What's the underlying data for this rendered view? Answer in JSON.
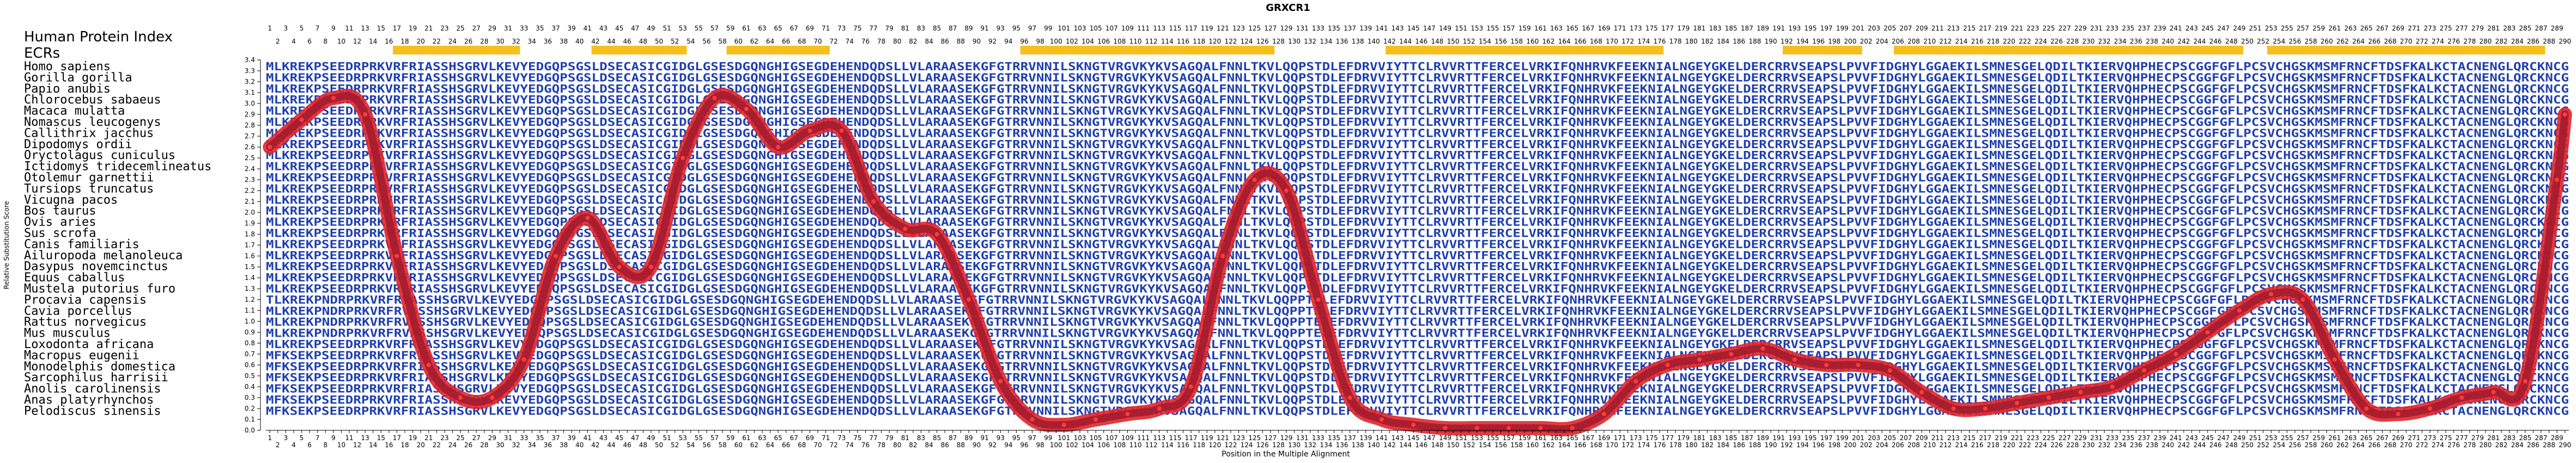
{
  "chart_data": {
    "type": "line",
    "title": "GRXCR1",
    "header_left": "Human Protein Index",
    "ecr_label": "ECRs",
    "xlabel": "Position in the Multiple Alignment",
    "ylabel": "Relative Substitution Score",
    "ylim": [
      0.0,
      3.4
    ],
    "yticks": [
      0.0,
      0.1,
      0.2,
      0.3,
      0.4,
      0.5,
      0.6,
      0.7,
      0.8,
      0.9,
      1.0,
      1.1,
      1.2,
      1.3,
      1.4,
      1.5,
      1.6,
      1.7,
      1.8,
      1.9,
      2.0,
      2.1,
      2.2,
      2.3,
      2.4,
      2.5,
      2.6,
      2.7,
      2.8,
      2.9,
      3.0,
      3.1,
      3.2,
      3.3,
      3.4
    ],
    "alignment_length": 290,
    "human_index_length": 290,
    "grid": false,
    "species": [
      "Homo sapiens",
      "Gorilla gorilla",
      "Papio anubis",
      "Chlorocebus sabaeus",
      "Macaca mulatta",
      "Nomascus leucogenys",
      "Callithrix jacchus",
      "Dipodomys ordii",
      "Oryctolagus cuniculus",
      "Ictidomys tridecemlineatus",
      "Otolemur garnettii",
      "Tursiops truncatus",
      "Vicugna pacos",
      "Bos taurus",
      "Ovis aries",
      "Sus scrofa",
      "Canis familiaris",
      "Ailuropoda melanoleuca",
      "Dasypus novemcinctus",
      "Equus caballus",
      "Mustela putorius furo",
      "Procavia capensis",
      "Cavia porcellus",
      "Rattus norvegicus",
      "Mus musculus",
      "Loxodonta africana",
      "Macropus eugenii",
      "Monodelphis domestica",
      "Sarcophilus harrisii",
      "Anolis carolinensis",
      "Anas platyrhynchos",
      "Pelodiscus sinensis"
    ],
    "sequences": [
      "MLKREKPSEEDRPRKVRFRIASSHSGRVLKEVYEDGQPSGSLDSECASICGIDGLGSESDGQNGHIGSEGDEHENDQDSLLVLARAASEKGFGTRRVNNILSKNGTVRGVKYKVSAGQALFNNLTKVLQQPSTDLEFDRVVIYTTCLRVVRTTFERCELVRKIFQNHRVKFEEKNIALNGEYGKELDERCRRVSEAPSLPVVFIDGHYLGGAEKILSMNESGELQDILTKIERVQHPHECPSCGGFGFLPCSVCHGSKMSMFRNCFTDSFKALKCTACNENGLQRCKNCG",
      "MLKREKPSEEDRPRKVRFRIASSHSGRVLKEVYEDGQPSGSLDSECASICGIDGLGSESDGQNGHIGSEGDEHENDQDSLLVLARAASEKGFGTRRVNNILSKNGTVRGVKYKVSAGQALFNNLTKVLQQPSTDLEFDRVVIYTTCLRVVRTTFERCELVRKIFQNHRVKFEEKNIALNGEYGKELDERCRRVSEAPSLPVVFIDGHYLGGAEKILSMNESGELQDILTKIERVQHPHECPSCGGFGFLPCSVCHGSKMSMFRNCFTDSFKALKCTACNENGLQRCKNCG",
      "MLKREKPSEEDRPRKVRFRIASSHSGRVLKEVYEDGQPSGSLDSECASICGIDGLGSESDGQNGHIGSEGDEHENDQDSLLVLARAASEKGFGTRRVNNILSKNGTVRGVKYKVSAGQALFNNLTKVLQQPSTDLEFDRVVIYTTCLRVVRTTFERCELVRKIFQNHRVKFEEKNIALNGEYGKELDERCRRVSEAPSLPVVFIDGHYLGGAEKILSMNESGELQDILTKIERVQHPHECPSCGGFGFLPCSVCHGSKMSMFRNCFTDSFKALKCTACNENGLQRCKNCG",
      "MLKREKPSEEDRPRKVRFRIASSHSGRVLKEVYEDGQPSGSLDSECASICGIDGLGSESDGQNGHIGSEGDEHENDQDSLLVLARAASEKGFGTRRVNNILSKNGTVRGVKYKVSAGQALFNNLTKVLQQPSTDLEFDRVVIYTTCLRVVRTTFERCELVRKIFQNHRVKFEEKNIALNGEYGKELDERCRRVSEAPSLPVVFIDGHYLGGAEKILSMNESGELQDILTKIERVQHPHECPSCGGFGFLPCSVCHGSKMSMFRNCFTDSFKALKCTACNENGLQRCKNCG",
      "MLKREKPSEEDRPRKVRFRIASSHSGRVLKEVYEDGQPSGSLDSECASICGIDGLGSESDGQNGHIGSEGDEHENDQDSLLVLARAASEKGFGTRRVNNILSKNGTVRGVKYKVSAGQALFNNLTKVLQQPSTDLEFDRVVIYTTCLRVVRTTFERCELVRKIFQNHRVKFEEKNIALNGEYGKELDERCRRVSEAPSLPVVFIDGHYLGGAEKILSMNESGELQDILTKIERVQHPHECPSCGGFGFLPCSVCHGSKMSMFRNCFTDSFKALKCTACNENGLQRCKNCG",
      "MLKREKPSEEDRPRKVRFRIASSHSGRVLKEVYEDGQPSGSLDSECASICGIDGLGSESDGQNGHIGSEGDEHENDQDSLLVLARAASEKGFGTRRVNNILSKNGTVRGVKYKVSAGQALFNNLTKVLQQPSTDLEFDRVVIYTTCLRVVRTTFERCELVRKIFQNHRVKFEEKNIALNGEYGKELDERCRRVSEAPSLPVVFIDGHYLGGAEKILSMNESGELQDILTKIERVQHPHECPSCGGFGFLPCSVCHGSKMSMFRNCFTDSFKALKCTACNENGLQRCKNCG",
      "MLKREKPSEEDRPRKVRFRIASSHSGRVLKEVYEDGQPSGSLDSECASICGIDGLGSESDGQNGHIGSEGDEHENDQDSLLVLARAASEKGFGTRRVNNILSKNGTVRGVKYKVSAGQALFNNLTKVLQQPSTDLEFDRVVIYTTCLRVVRTTFERCELVRKIFQNHRVKFEEKNIALNGEYGKELDERCRRVSEAPSLPVVFIDGHYLGGAEKILSMNESGELQDILTKIERVQHPHECPSCGGFGFLPCSVCHGSKMSMFRNCFTDSFKALKCTACNENGLQRCKNCG",
      "MLKREKPSEEDRPRKVRFRIASSHSGRVLKEVYEDGQPSGSLDSECASICGIDGLGSESDGQNGHIGSEGDEHENDQDSLLVLARAASEKGFGTRRVNNILSKNGTVRGVKYKVSAGQALFNNLTKVLQQPSTDLEFDRVVIYTTCLRVVRTTFERCELVRKIFQNHRVKFEEKNIALNGEYGKELDERCRRVSEAPSLPVVFIDGHYLGGAEKILSMNESGELQDILTKIERVQHPHECPSCGGFGFLPCSVCHGSKMSMFRNCFTDSFKALKCTACNENGLQRCKNCG",
      "MLKREKPSEEDRPRKVRFRIASSHSGRVLKEVYEDGQPSGSLDSECASICGIDGLGSESDGQNGHIGSEGDEHENDQDSLLVLARAASEKGFGTRRVNNILSKNGTVRGVKYKVSAGQALFNNLTKVLQQPSTDLEFDRVVIYTTCLRVVRTTFERCELVRKIFQNHRVKFEEKNIALNGEYGKELDERCRRVSEAPSLPVVFIDGHYLGGAEKILSMNESGELQDILTKIERVQHPHECPSCGGFGFLPCSVCHGSKMSMFRNCFTDSFKALKCTACNENGLQRCKNCG",
      "MLKREKPSEEDRPRKVRFRIASSHSGRVLKEVYEDGQPSGSLDSECASICGIDGLGSESDGQNGHIGSEGDEHENDQDSLLVLARAASEKGFGTRRVNNILSKNGTVRGVKYKVSAGQALFNNLTKVLQQPSTDLEFDRVVIYTTCLRVVRTTFERCELVRKIFQNHRVKFEEKNIALNGEYGKELDERCRRVSEAPSLPVVFIDGHYLGGAEKILSMNESGELQDILTKIERVQHPHECPSCGGFGFLPCSVCHGSKMSMFRNCFTDSFKALKCTACNENGLQRCKNCG",
      "MLKREKPSEEDRPRKVRFRIASSHSGRVLKEVYEDGQPSGSLDSECASICGIDGLGSESDGQNGHIGSEGDEHENDQDSLLVLARAASEKGFGTRRVNNILSKNGTVRGVKYKVSAGQALFNNLTKVLQQPSTDLEFDRVVIYTTCLRVVRTTFERCELVRKIFQNHRVKFEEKNIALNGEYGKELDERCRRVSEAPSLPVVFIDGHYLGGAEKILSMNESGELQDILTKIERVQHPHECPSCGGFGFLPCSVCHGSKMSMFRNCFTDSFKALKCTACNENGLQRCKNCG",
      "MLKREKPSEEDRPRKVRFRIASSHSGRVLKEVYEDGQPSGSLDSECASICGIDGLGSESDGQNGHIGSEGDEHENDQDSLLVLARAASEKGFGTRRVNNILSKNGTVRGVKYKVSAGQALFNNLTKVLQQPSTDLEFDRVVIYTTCLRVVRTTFERCELVRKIFQNHRVKFEEKNIALNGEYGKELDERCRRVSEAPSLPVVFIDGHYLGGAEKILSMNESGELQDILTKIERVQHPHECPSCGGFGFLPCSVCHGSKMSMFRNCFTDSFKALKCTACNENGLQRCKNCG",
      "MLKREKPSEEDRPRKVRFRIASSHSGRVLKEVYEDGQPSGSLDSECASICGIDGLGSESDGQNGHIGSEGDEHENDQDSLLVLARAASEKGFGTRRVNNILSKNGTVRGVKYKVSAGQALFNNLTKVLQQPSTDLEFDRVVIYTTCLRVVRTTFERCELVRKIFQNHRVKFEEKNIALNGEYGKELDERCRRVSEAPSLPVVFIDGHYLGGAEKILSMNESGELQDILTKIERVQHPHECPSCGGFGFLPCSVCHGSKMSMFRNCFTDSFKALKCTACNENGLQRCKNCG",
      "MLKREKPSEEDRPRKVRFRIASSHSGRVLKEVYEDGQPSGSLDSECASICGIDGLGSESDGQNGHIGSEGDEHENDQDSLLVLARAASEKGFGTRRVNNILSKNGTVRGVKYKVSAGQALFNNLTKVLQQPSTDLEFDRVVIYTTCLRVVRTTFERCELVRKIFQNHRVKFEEKNIALNGEYGKELDERCRRVSEAPSLPVVFIDGHYLGGAEKILSMNESGELQDILTKIERVQHPHECPSCGGFGFLPCSVCHGSKMSMFRNCFTDSFKALKCTACNENGLQRCKNCG",
      "MLKREKPSEEDRPRKVRFRIASSHSGRVLKEVYEDGQPSGSLDSECASICGIDGLGSESDGQNGHIGSEGDEHENDQDSLLVLARAASEKGFGTRRVNNILSKNGTVRGVKYKVSAGQALFNNLTKVLQQPSTDLEFDRVVIYTTCLRVVRTTFERCELVRKIFQNHRVKFEEKNIALNGEYGKELDERCRRVSEAPSLPVVFIDGHYLGGAEKILSMNESGELQDILTKIERVQHPHECPSCGGFGFLPCSVCHGSKMSMFRNCFTDSFKALKCTACNENGLQRCKNCG",
      "MLKREKPSEEDRPRKVRFRIASSHSGRVLKEVYEDGQPSGSLDSECASICGIDGLGSESDGQNGHIGSEGDEHENDQDSLLVLARAASEKGFGTRRVNNILSKNGTVRGVKYKVSAGQALFNNLTKVLQQPSTDLEFDRVVIYTTCLRVVRTTFERCELVRKIFQNHRVKFEEKNIALNGEYGKELDERCRRVSEAPSLPVVFIDGHYLGGAEKILSMNESGELQDILTKIERVQHPHECPSCGGFGFLPCSVCHGSKMSMFRNCFTDSFKALKCTACNENGLQRCKNCG",
      "MLKREKPSEEDRPRKVRFRIASSHSGRVLKEVYEDGQPSGSLDSECASICGIDGLGSESDGQNGHIGSEGDEHENDQDSLLVLARAASEKGFGTRRVNNILSKNGTVRGVKYKVSAGQALFNNLTKVLQQPSTDLEFDRVVIYTTCLRVVRTTFERCELVRKIFQNHRVKFEEKNIALNGEYGKELDERCRRVSEAPSLPVVFIDGHYLGGAEKILSMNESGELQDILTKIERVQHPHECPSCGGFGFLPCSVCHGSKMSMFRNCFTDSFKALKCTACNENGLQRCKNCG",
      "MLKREKPSEEDRPRKVRFRIASSHSGRVLKEVYEDGQPSGSLDSECASICGIDGLGSESDGQNGHIGSEGDEHENDQDSLLVLARAASEKGFGTRRVNNILSKNGTVRGVKYKVSAGQALFNNLTKVLQQPSTDLEFDRVVIYTTCLRVVRTTFERCELVRKIFQNHRVKFEEKNIALNGEYGKELDERCRRVSEAPSLPVVFIDGHYLGGAEKILSMNESGELQDILTKIERVQHPHECPSCGGFGFLPCSVCHGSKMSMFRNCFTDSFKALKCTACNENGLQRCKNCG",
      "MLKREKPSEEDRPRKVRFRIASSHSGRVLKEVYEDGQPSGSLDSECASICGIDGLGSESDGQNGHIGSEGDEHENDQDSLLVLARAASEKGFGTRRVNNILSKNGTVRGVKYKVSAGQALFNNLTKVLQQPSTDLEFDRVVIYTTCLRVVRTTFERCELVRKIFQNHRVKFEEKNIALNGEYGKELDERCRRVSEAPSLPVVFIDGHYLGGAEKILSMNESGELQDILTKIERVQHPHECPSCGGFGFLPCSVCHGSKMSMFRNCFTDSFKALKCTACNENGLQRCKNCG",
      "MLKREKPSEEDRPRKVRFRIASSHSGRVLKEVYEDGQPSGSLDSECASICGIDGLGSESDGQNGHIGSEGDEHENDQDSLLVLARAASEKGFGTRRVNNILSKNGTVRGVKYKVSAGQALFNNLTKVLQQPSTDLEFDRVVIYTTCLRVVRTTFERCELVRKIFQNHRVKFEEKNIALNGEYGKELDERCRRVSEAPSLPVVFIDGHYLGGAEKILSMNESGELQDILTKIERVQHPHECPSCGGFGFLPCSVCHGSKMSMFRNCFTDSFKALKCTACNENGLQRCKNCG",
      "MLKREKPSEEDRPRKVRFRIASSHSGRVLKEVYEDGQPSGSLDSECASICGIDGLGSESDGQNGHIGSEGDEHENDQDSLLVLARAASEKGFGTRRVNNILSKNGTVRGVKYKVSAGQALFNNLTKVLQQPSTDLEFDRVVIYTTCLRVVRTTFERCELVRKIFQNHRVKFEEKNIALNGEYGKELDERCRRVSEAPSLPVVFIDGHYLGGAEKILSMNESGELQDILTKIERVQHPHECPSCGGFGFLPCSVCHGSKMSMFRNCFTDSFKALKCTACNENGLQRCKNCG",
      "TLKREKPNDRPRKVRFRVASSHSGRVLKEVYEDGQPSGSLDSECASICGIDGLGSESDGQNGHIGSEGDEHENDQDSLLVLARAASEKGFGTRRVNNILSKNGTVRGVKYKVSAGQALFNNLTKVLQQPPTELEFDRVVIYTTCLRVVRTTFERCELVRKIFQNHRVKFEEKNIALNGEYGKELDERCRRVSEAPSLPVVFIDGHYLGGAEKILSMNESGELQDILTKIERVQHPHECPSCGGFGFLPCSVCHGSKMSMFRNCFTDSFKALKCTACNENGLQRCKNCG",
      "MLKREKPNDRPRKVRFRVASSHSGRVLKEVYEDGQPSGSLDSECASICGIDGLGSESDGQNGHIGSEGDEHENDQDSLLVLARAASEKGFGTRRVNNILSKNGTVRGVKYKVSAGQALFNNLTKVLQQPPTELEFDRVVIYTTCLRVVRTTFERCELVRKIFQNHRVKFEEKNIALNGEYGKELDERCRRVSEAPSLPVVFIDGHYLGGAEKILSMNESGELQDILTKIERVQHPHECPSCGGFGFLPCSVCHGSKMSMFRNCFTDSFKALKCTACNENGLQRCKNCG",
      "MLKREKPNDRPRKVRFRVASSHSGRVLKEVYEDGQPSGSLDSECASICGIDGLGSESDGQNGHIGSEGDEHENDQDSLLVLARAASEKGFGTRRVNNILSKNGTVRGVKYKVSAGQALFNNLTKVLQQPPTELEFDRVVIYTTCLRVVRTTFERCELVRKIFQNHRVKFEEKNIALNGEYGKELDERCRRVSEAPSLPVVFIDGHYLGGAEKILSMNESGELQDILTKIERVQHPHECPSCGGFGFLPCSVCHGSKMSMFRNCFTDSFKALKCTACNENGLQRCKNCG",
      "MLKREKPNDRPRKVRFRVASSHSGRVLKEVYEDGQPSGSLDSECASICGIDGLGSESDGQNGHIGSEGDEHENDQDSLLVLARAASEKGFGTRRVNNILSKNGTVRGVKYKVSAGQALFNNLTKVLQQPPTELEFDRVVIYTTCLRVVRTTFERCELVRKIFQNHRVKFEEKNIALNGEYGKELDERCRRVSEAPSLPVVFIDGHYLGGAEKILSMNESGELQDILTKIERVQHPHECPSCGGFGFLPCSVCHGSKMSMFRNCFTDSFKALKCTACNENGLQRCKNCG",
      "MLKREKPSEEDRPRKVRFRIASSHSGRVLKEVYEDGQPSGSLDSECASICGIDGLGSESDGQNGHIGSEGDEHENDQDSLLVLARAASEKGFGTRRVNNILSKNGTVRGVKYKVSAGQALFNNLTKVLQQPSTDLEFDRVVIYTTCLRVVRTTFERCELVRKIFQNHRVKFEEKNIALNGEYGKELDERCRRVSEAPSLPVVFIDGHYLGGAEKILSMNESGELQDILTKIERVQHPHECPSCGGFGFLPCSVCHGSKMSMFRNCFTDSFKALKCTACNENGLQRCKNCG",
      "MFKSEKPSEEDRPRKVRFRIASSHSGRVLKEVYEDGQPSGSLDSECASICGIDGLGSESDGQNGHIGSEGDEHENDQDSLLVLARAASEKGFGTRRVNNILSKNGTVRGVKYKVSAGQALFNNLTKVLQQPSTDLEFDRVVIYTTCLRVVRTTFERCELVRKIFQNHRVKFEEKNIALNGEYGKELDERCRRVSEAPSLPVVFIDGHYLGGAEKILSMNESGELQDILTKIERVQHPHECPSCGGFGFLPCSVCHGSKMSMFRNCFTDSFKALKCTACNENGLQRCKNCG",
      "MFKSEKPSEEDRPRKVRFRIASSHSGRVLKEVYEDGQPSGSLDSECASICGIDGLGSESDGQNGHIGSEGDEHENDQDSLLVLARAASEKGFGTRRVNNILSKNGTVRGVKYKVSAGQALFNNLTKVLQQPSTDLEFDRVVIYTTCLRVVRTTFERCELVRKIFQNHRVKFEEKNIALNGEYGKELDERCRRVSEAPSLPVVFIDGHYLGGAEKILSMNESGELQDILTKIERVQHPHECPSCGGFGFLPCSVCHGSKMSMFRNCFTDSFKALKCTACNENGLQRCKNCG",
      "MFKSEKPSEEDRPRKVRFRIASSHSGRVLKEVYEDGQPSGSLDSECASICGIDGLGSESDGQNGHIGSEGDEHENDQDSLLVLARAASEKGFGTRRVNNILSKNGTVRGVKYKVSAGQALFNNLTKVLQQPSTDLEFDRVVIYTTCLRVVRTTFERCELVRKIFQNHRVKFEEKNIALNGEYGKELDERCRRVSEAPSLPVVFIDGHYLGGAEKILSMNESGELQDILTKIERVQHPHECPSCGGFGFLPCSVCHGSKMSMFRNCFTDSFKALKCTACNENGLQRCKNCG",
      "MFKSEKPSEEDRPRKVRFRIASSHSGRVLKEVYEDGQPSGSLDSECASICGIDGLGSESDGQNGHIGSEGDEHENDQDSLLVLARAASEKGFGTRRVNNILSKNGTVRGVKYKVSAGQALFNNLTKVLQQPSTDLEFDRVVIYTTCLRVVRTTFERCELVRKIFQNHRVKFEEKNIALNGEYGKELDERCRRVSEAPSLPVVFIDGHYLGGAEKILSMNESGELQDILTKIERVQHPHECPSCGGFGFLPCSVCHGSKMSMFRNCFTDSFKALKCTACNENGLQRCKNCG",
      "MFKSEKPSEEDRPRKVRFRIASSHSGRVLKEVYEDGQPSGSLDSECASICGIDGLGSESDGQNGHIGSEGDEHENDQDSLLVLARAASEKGFGTRRVNNILSKNGTVRGVKYKVSAGQALFNNLTKVLQQPSTDLEFDRVVIYTTCLRVVRTTFERCELVRKIFQNHRVKFEEKNIALNGEYGKELDERCRRVSEAPSLPVVFIDGHYLGGAEKILSMNESGELQDILTKIERVQHPHECPSCGGFGFLPCSVCHGSKMSMFRNCFTDSFKALKCTACNENGLQRCKNCG",
      "MFKSEKPSEEDRPRKVRFRIASSHSGRVLKEVYEDGQPSGSLDSECASICGIDGLGSESDGQNGHIGSEGDEHENDQDSLLVLARAASEKGFGTRRVNNILSKNGTVRGVKYKVSAGQALFNNLTKVLQQPSTDLEFDRVVIYTTCLRVVRTTFERCELVRKIFQNHRVKFEEKNIALNGEYGKELDERCRRVSEAPSLPVVFIDGHYLGGAEKILSMNESGELQDILTKIERVQHPHECPSCGGFGFLPCSVCHGSKMSMFRNCFTDSFKALKCTACNENGLQRCKNCG"
    ],
    "ecr_ranges": [
      [
        17,
        32
      ],
      [
        42,
        53
      ],
      [
        59,
        71
      ],
      [
        96,
        127
      ],
      [
        142,
        176
      ],
      [
        192,
        201
      ],
      [
        206,
        249
      ],
      [
        253,
        287
      ]
    ],
    "series": [
      {
        "x": [
          1,
          5,
          9,
          13,
          17,
          21,
          25,
          29,
          33,
          37,
          41,
          45,
          49,
          53,
          57,
          61,
          65,
          69,
          73,
          77,
          81,
          85,
          89,
          93,
          97,
          101,
          105,
          109,
          113,
          117,
          121,
          125,
          129,
          133,
          137,
          141,
          145,
          149,
          153,
          157,
          161,
          165,
          169,
          173,
          177,
          181,
          185,
          189,
          193,
          197,
          201,
          205,
          209,
          213,
          217,
          221,
          225,
          229,
          233,
          237,
          241,
          245,
          249,
          253,
          257,
          261,
          265,
          269,
          273,
          277,
          281,
          285,
          289,
          290
        ],
        "y": [
          2.6,
          2.85,
          3.05,
          2.9,
          1.6,
          0.6,
          0.3,
          0.3,
          0.65,
          1.6,
          1.95,
          1.5,
          1.5,
          2.5,
          3.05,
          2.95,
          2.6,
          2.75,
          2.75,
          2.1,
          1.85,
          1.8,
          1.2,
          0.45,
          0.1,
          0.05,
          0.1,
          0.15,
          0.2,
          0.4,
          1.6,
          2.3,
          2.2,
          1.2,
          0.3,
          0.1,
          0.05,
          0.02,
          0.02,
          0.02,
          0.02,
          0.02,
          0.15,
          0.45,
          0.6,
          0.65,
          0.7,
          0.75,
          0.65,
          0.6,
          0.6,
          0.55,
          0.35,
          0.2,
          0.2,
          0.25,
          0.3,
          0.35,
          0.4,
          0.55,
          0.7,
          0.9,
          1.1,
          1.25,
          1.2,
          0.65,
          0.2,
          0.15,
          0.2,
          0.3,
          0.35,
          0.45,
          2.3,
          2.9
        ]
      }
    ]
  }
}
